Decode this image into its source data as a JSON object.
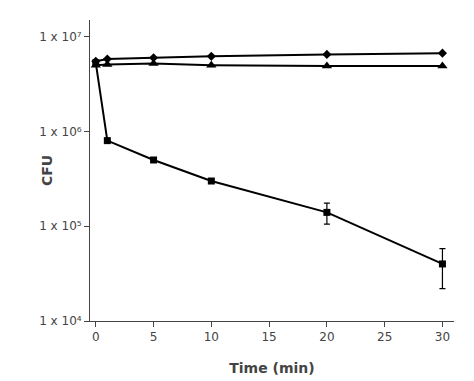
{
  "chart_data": {
    "type": "line",
    "x_label": "Time (min)",
    "y_label": "CFU",
    "x": [
      0,
      1,
      5,
      10,
      20,
      30
    ],
    "series": [
      {
        "values": [
          5500000.0,
          5800000.0,
          6000000.0,
          6200000.0,
          6500000.0,
          6700000.0
        ],
        "marker": "diamond",
        "line_style": "solid",
        "color": "#000000"
      },
      {
        "values": [
          5000000.0,
          5100000.0,
          5200000.0,
          5000000.0,
          4900000.0,
          4900000.0
        ],
        "marker": "triangle",
        "line_style": "solid",
        "color": "#000000"
      },
      {
        "values": [
          5300000.0,
          800000.0,
          500000.0,
          300000.0,
          140000.0,
          40000.0
        ],
        "marker": "square",
        "line_style": "solid",
        "color": "#000000",
        "error_lower": [
          0,
          0,
          0,
          0,
          35000.0,
          18000.0
        ],
        "error_upper": [
          0,
          0,
          0,
          0,
          35000.0,
          18000.0
        ]
      }
    ],
    "log": "y",
    "xlim": [
      -0.5,
      31
    ],
    "xticks": [
      0,
      5,
      10,
      15,
      20,
      25,
      30
    ],
    "ylim": [
      10000.0,
      15000000.0
    ],
    "yticks": [
      {
        "value": 10000.0,
        "label": "1 x 10⁴"
      },
      {
        "value": 100000.0,
        "label": "1 x 10⁵"
      },
      {
        "value": 1000000.0,
        "label": "1 x 10⁶"
      },
      {
        "value": 10000000.0,
        "label": "1 x 10⁷"
      }
    ],
    "grid": false
  }
}
